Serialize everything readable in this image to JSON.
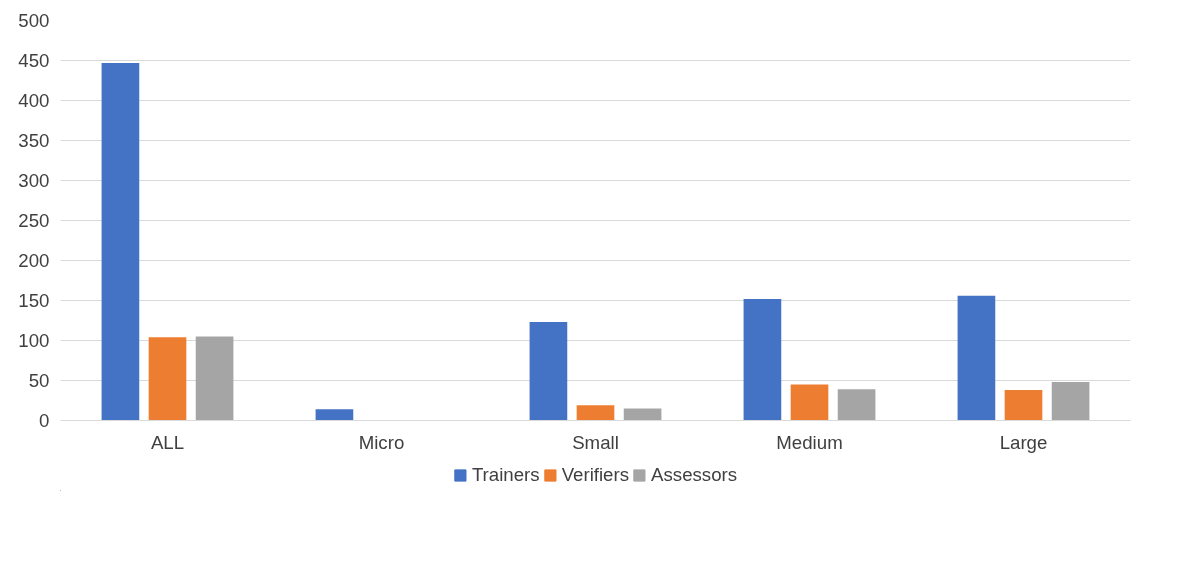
{
  "chart_data": {
    "type": "bar",
    "categories": [
      "ALL",
      "Micro",
      "Small",
      "Medium",
      "Large"
    ],
    "series": [
      {
        "name": "Trainers",
        "color": "#4472c4",
        "values": [
          447,
          14,
          123,
          152,
          156
        ]
      },
      {
        "name": "Verifiers",
        "color": "#ed7d31",
        "values": [
          104,
          0,
          19,
          45,
          38
        ]
      },
      {
        "name": "Assessors",
        "color": "#a5a5a5",
        "values": [
          105,
          0,
          15,
          39,
          48
        ]
      }
    ],
    "ylim": [
      0,
      500
    ],
    "yticks": [
      0,
      50,
      100,
      150,
      200,
      250,
      300,
      350,
      400,
      450,
      500
    ],
    "grid": "y",
    "legend": "bottom"
  }
}
